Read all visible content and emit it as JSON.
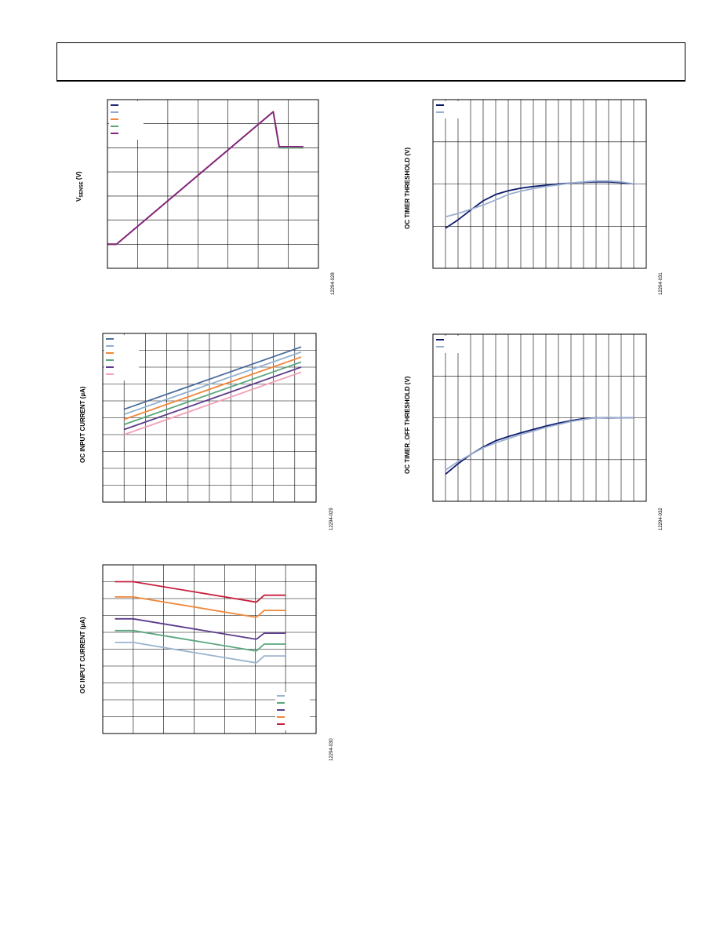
{
  "figures": [
    {
      "ylabel_main": "V",
      "ylabel_sub": "SENSE",
      "ylabel_rest": " (V)",
      "fig_id": "12294-028"
    },
    {
      "ylabel": "OC TIMER THRESHOLD (V)",
      "fig_id": "12294-031"
    },
    {
      "ylabel": "OC INPUT CURRENT (µA)",
      "fig_id": "12294-029"
    },
    {
      "ylabel": "OC TIMER_OFF THRESHOLD (V)",
      "fig_id": "12294-032"
    },
    {
      "ylabel": "OC INPUT CURRENT (µA)",
      "fig_id": "12294-030"
    }
  ],
  "chart_data": [
    {
      "type": "line",
      "xlim": [
        0,
        70
      ],
      "ylim": [
        0,
        7
      ],
      "x_divisions": 7,
      "y_divisions": 7,
      "legend": "top-left",
      "series": [
        {
          "color": "#1f2a6e",
          "x": [
            0,
            3,
            55,
            57,
            65
          ],
          "y": [
            1,
            1,
            6.5,
            5,
            5
          ]
        },
        {
          "color": "#8fa8cc",
          "x": [
            0,
            3,
            55,
            57,
            65
          ],
          "y": [
            1,
            1,
            6.5,
            5,
            5
          ]
        },
        {
          "color": "#f0873a",
          "x": [
            0,
            3,
            55,
            57,
            65
          ],
          "y": [
            1,
            1,
            6.5,
            5,
            5
          ]
        },
        {
          "color": "#5aa77e",
          "x": [
            0,
            3,
            55,
            57,
            65
          ],
          "y": [
            1,
            1,
            6.5,
            5,
            5
          ]
        },
        {
          "color": "#8a2080",
          "x": [
            0,
            3,
            55,
            57,
            65
          ],
          "y": [
            1,
            1,
            6.5,
            5.05,
            5.05
          ]
        }
      ]
    },
    {
      "type": "line",
      "xlim": [
        0,
        17
      ],
      "ylim": [
        0,
        4
      ],
      "x_divisions": 17,
      "y_divisions": 4,
      "legend": "top-left",
      "series": [
        {
          "color": "#0d1a6b",
          "x": [
            1,
            2,
            3,
            4,
            5,
            6,
            7,
            8,
            9,
            10,
            11,
            12,
            13,
            14,
            15,
            16
          ],
          "y": [
            0.95,
            1.15,
            1.38,
            1.6,
            1.75,
            1.84,
            1.9,
            1.94,
            1.97,
            2.0,
            2.02,
            2.04,
            2.05,
            2.05,
            2.03,
            2.0
          ]
        },
        {
          "color": "#9aaed0",
          "x": [
            1,
            2,
            3,
            4,
            5,
            6,
            7,
            8,
            9,
            10,
            11,
            12,
            13,
            14,
            15,
            16
          ],
          "y": [
            1.22,
            1.3,
            1.4,
            1.5,
            1.62,
            1.75,
            1.83,
            1.89,
            1.94,
            1.98,
            2.02,
            2.05,
            2.07,
            2.07,
            2.05,
            2.0
          ]
        }
      ]
    },
    {
      "type": "line",
      "xlim": [
        0,
        10
      ],
      "ylim": [
        0,
        10
      ],
      "x_divisions": 10,
      "y_divisions": 10,
      "legend": "top-left",
      "series": [
        {
          "color": "#4b6d9c",
          "x": [
            1,
            9.3
          ],
          "y": [
            5.5,
            9.2
          ]
        },
        {
          "color": "#8fb0d0",
          "x": [
            1,
            9.3
          ],
          "y": [
            5.2,
            8.9
          ]
        },
        {
          "color": "#f0873a",
          "x": [
            1,
            9.3
          ],
          "y": [
            4.9,
            8.6
          ]
        },
        {
          "color": "#5aa77e",
          "x": [
            1,
            9.3
          ],
          "y": [
            4.6,
            8.3
          ]
        },
        {
          "color": "#5b3c8c",
          "x": [
            1,
            9.3
          ],
          "y": [
            4.3,
            8.0
          ]
        },
        {
          "color": "#f2a0b8",
          "x": [
            1,
            9.3
          ],
          "y": [
            4.0,
            7.7
          ]
        }
      ]
    },
    {
      "type": "line",
      "xlim": [
        0,
        17
      ],
      "ylim": [
        0,
        4
      ],
      "x_divisions": 17,
      "y_divisions": 4,
      "legend": "top-left",
      "series": [
        {
          "color": "#0d1a6b",
          "x": [
            1,
            2,
            3,
            4,
            5,
            6,
            7,
            8,
            9,
            10,
            11,
            12,
            13,
            14,
            15,
            16
          ],
          "y": [
            0.65,
            0.9,
            1.12,
            1.3,
            1.45,
            1.55,
            1.64,
            1.72,
            1.8,
            1.87,
            1.93,
            1.98,
            2.0,
            2.0,
            2.0,
            2.0
          ]
        },
        {
          "color": "#9aaed0",
          "x": [
            1,
            2,
            3,
            4,
            5,
            6,
            7,
            8,
            9,
            10,
            11,
            12,
            13,
            14,
            15,
            16
          ],
          "y": [
            0.75,
            0.95,
            1.12,
            1.28,
            1.4,
            1.5,
            1.6,
            1.68,
            1.77,
            1.84,
            1.91,
            1.96,
            2.0,
            2.01,
            2.0,
            2.0
          ]
        }
      ]
    },
    {
      "type": "line",
      "xlim": [
        0,
        7
      ],
      "ylim": [
        0,
        10
      ],
      "x_divisions": 7,
      "y_divisions": 10,
      "legend": "bottom-right",
      "series": [
        {
          "color": "#9bb3cf",
          "x": [
            0.4,
            1.0,
            5.0,
            5.05,
            5.3,
            6.0
          ],
          "y": [
            5.4,
            5.4,
            4.2,
            4.2,
            4.6,
            4.6
          ]
        },
        {
          "color": "#5aa77e",
          "x": [
            0.4,
            1.0,
            5.0,
            5.05,
            5.3,
            6.0
          ],
          "y": [
            6.1,
            6.1,
            4.9,
            4.9,
            5.3,
            5.3
          ]
        },
        {
          "color": "#5b3c8c",
          "x": [
            0.4,
            1.0,
            5.0,
            5.05,
            5.3,
            6.0
          ],
          "y": [
            6.8,
            6.8,
            5.6,
            5.6,
            5.95,
            5.95
          ]
        },
        {
          "color": "#f0873a",
          "x": [
            0.4,
            1.0,
            5.0,
            5.05,
            5.3,
            6.0
          ],
          "y": [
            8.1,
            8.1,
            6.9,
            6.9,
            7.3,
            7.3
          ]
        },
        {
          "color": "#c81e3c",
          "x": [
            0.4,
            1.0,
            5.0,
            5.05,
            5.3,
            6.0
          ],
          "y": [
            9.0,
            9.0,
            7.8,
            7.8,
            8.2,
            8.2
          ]
        }
      ]
    }
  ]
}
